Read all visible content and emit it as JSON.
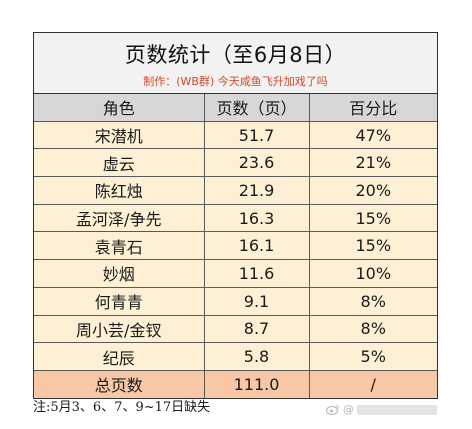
{
  "title": "页数统计（至6月8日）",
  "subtitle": "制作：(WB群) 今天咸鱼飞升加戏了吗",
  "columns": [
    "角色",
    "页数（页）",
    "百分比"
  ],
  "rows": [
    {
      "name": "宋潜机",
      "pages": "51.7",
      "pct": "47%"
    },
    {
      "name": "虚云",
      "pages": "23.6",
      "pct": "21%"
    },
    {
      "name": "陈红烛",
      "pages": "21.9",
      "pct": "20%"
    },
    {
      "name": "孟河泽/争先",
      "pages": "16.3",
      "pct": "15%"
    },
    {
      "name": "袁青石",
      "pages": "16.1",
      "pct": "15%"
    },
    {
      "name": "妙烟",
      "pages": "11.6",
      "pct": "10%"
    },
    {
      "name": "何青青",
      "pages": "9.1",
      "pct": "8%"
    },
    {
      "name": "周小芸/金钗",
      "pages": "8.7",
      "pct": "8%"
    },
    {
      "name": "纪辰",
      "pages": "5.8",
      "pct": "5%"
    }
  ],
  "total": {
    "name": "总页数",
    "pages": "111.0",
    "pct": "/"
  },
  "note": "注:5月3、6、7、9~17日缺失",
  "watermark": {
    "prefix": "@",
    "icon": "weibo-logo-icon"
  },
  "colors": {
    "header_bg": "#d7d7d7",
    "row_bg": "#fdf0d5",
    "total_bg": "#f7c7a6",
    "subtitle": "#d4482a"
  }
}
